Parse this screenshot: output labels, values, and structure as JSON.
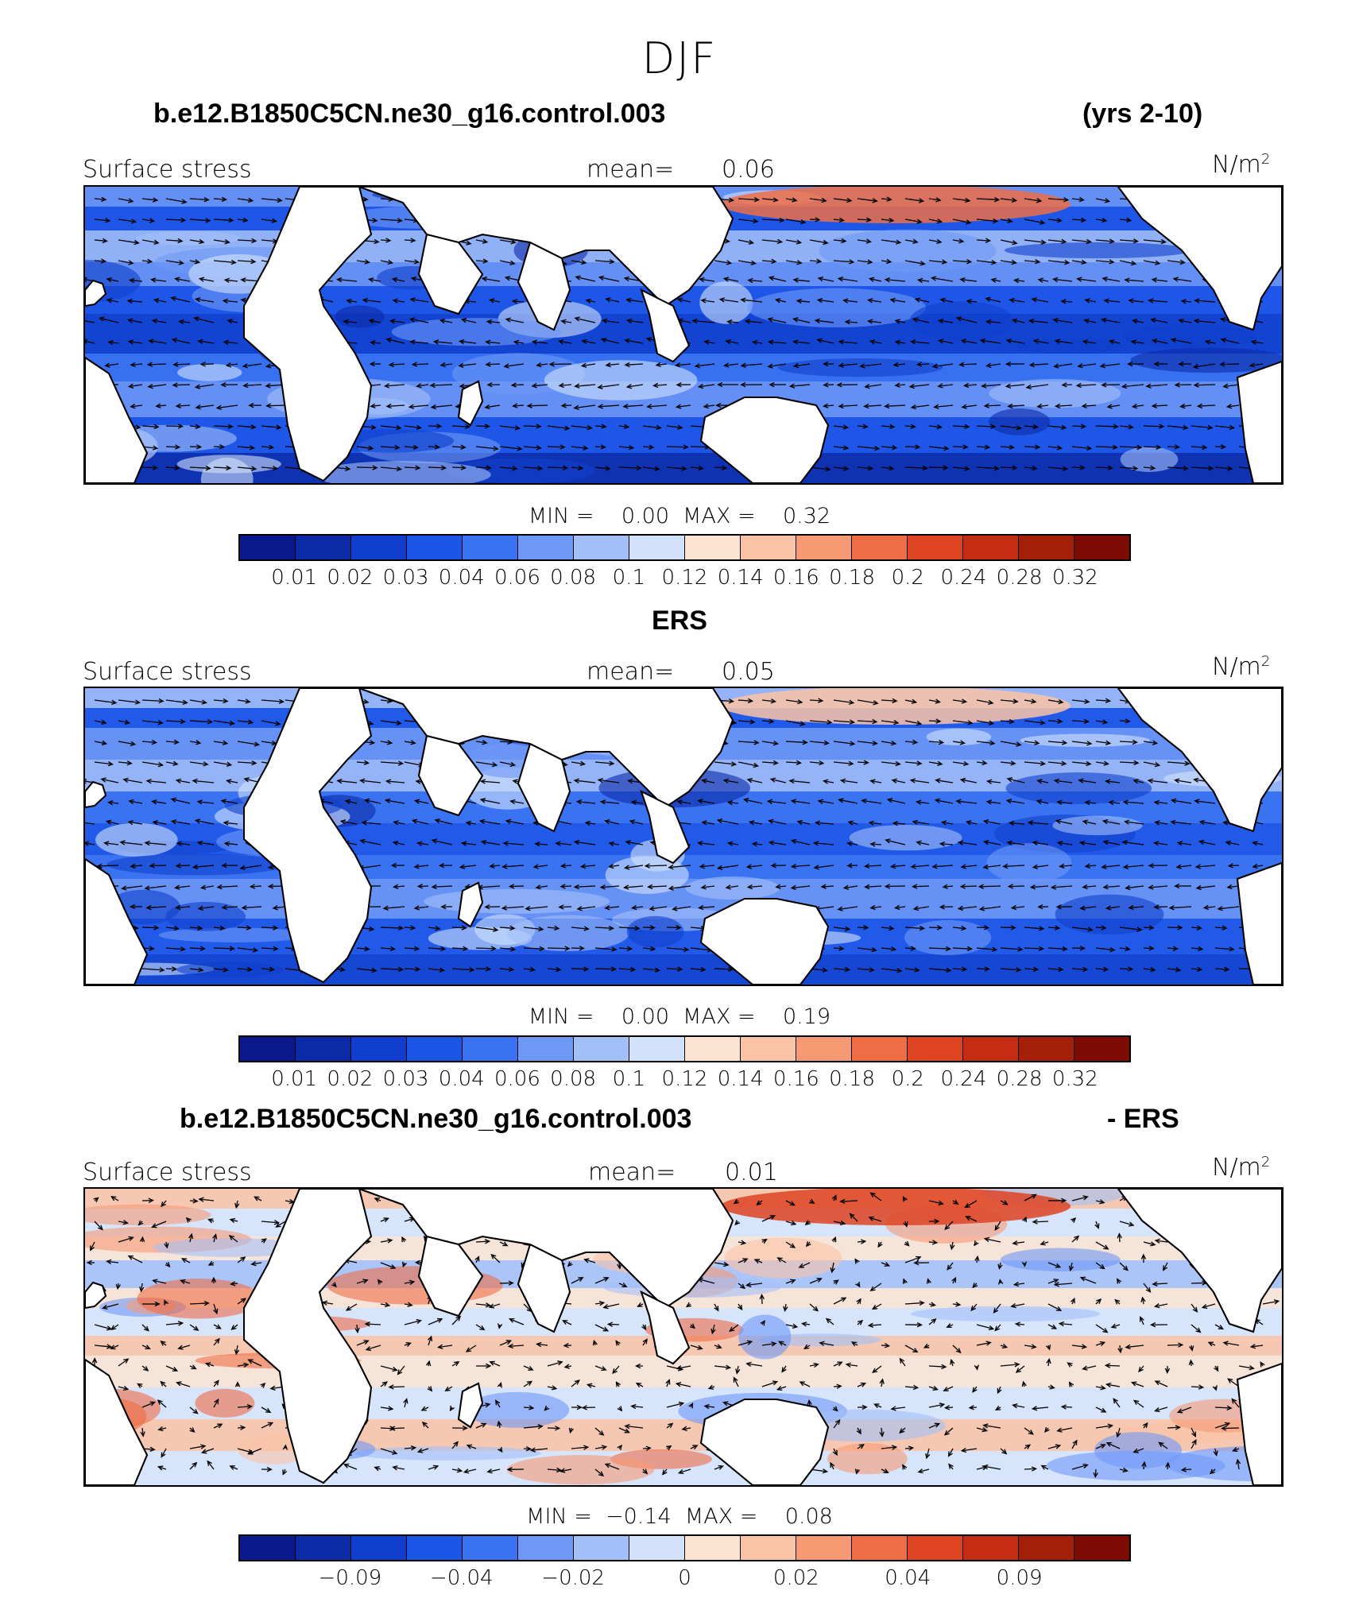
{
  "title": "DJF",
  "colorbar_colors": [
    "#0a1a8c",
    "#0b2aa8",
    "#0f3fcc",
    "#1c56e6",
    "#3a73f2",
    "#6e98f6",
    "#a3bff8",
    "#d2e2fb",
    "#fde4d2",
    "#fbc3a5",
    "#f69a74",
    "#ee6d45",
    "#de4322",
    "#c52d12",
    "#a41f08",
    "#7e0a04"
  ],
  "panels": [
    {
      "case_name": "b.e12.B1850C5CN.ne30_g16.control.003",
      "case_extra": "(yrs 2-10)",
      "variable": "Surface stress",
      "mean_label": "mean=",
      "mean_value": "0.06",
      "units": "N/m",
      "units_sup": "2",
      "minmax": "MIN =    0.00  MAX =    0.32",
      "ticks": [
        "0.01",
        "0.02",
        "0.03",
        "0.04",
        "0.06",
        "0.08",
        "0.1",
        "0.12",
        "0.14",
        "0.16",
        "0.18",
        "0.2",
        "0.24",
        "0.28",
        "0.32"
      ],
      "style": "model"
    },
    {
      "case_name": "ERS",
      "case_extra": "",
      "variable": "Surface stress",
      "mean_label": "mean=",
      "mean_value": "0.05",
      "units": "N/m",
      "units_sup": "2",
      "minmax": "MIN =    0.00  MAX =    0.19",
      "ticks": [
        "0.01",
        "0.02",
        "0.03",
        "0.04",
        "0.06",
        "0.08",
        "0.1",
        "0.12",
        "0.14",
        "0.16",
        "0.18",
        "0.2",
        "0.24",
        "0.28",
        "0.32"
      ],
      "style": "obs"
    },
    {
      "case_name": "b.e12.B1850C5CN.ne30_g16.control.003",
      "case_extra": "- ERS",
      "variable": "Surface stress",
      "mean_label": "mean=",
      "mean_value": "0.01",
      "units": "N/m",
      "units_sup": "2",
      "minmax": "MIN =  −0.14  MAX =    0.08",
      "ticks": [
        "−0.09",
        "−0.04",
        "−0.02",
        "0",
        "0.02",
        "0.04",
        "0.09"
      ],
      "style": "diff"
    }
  ]
}
